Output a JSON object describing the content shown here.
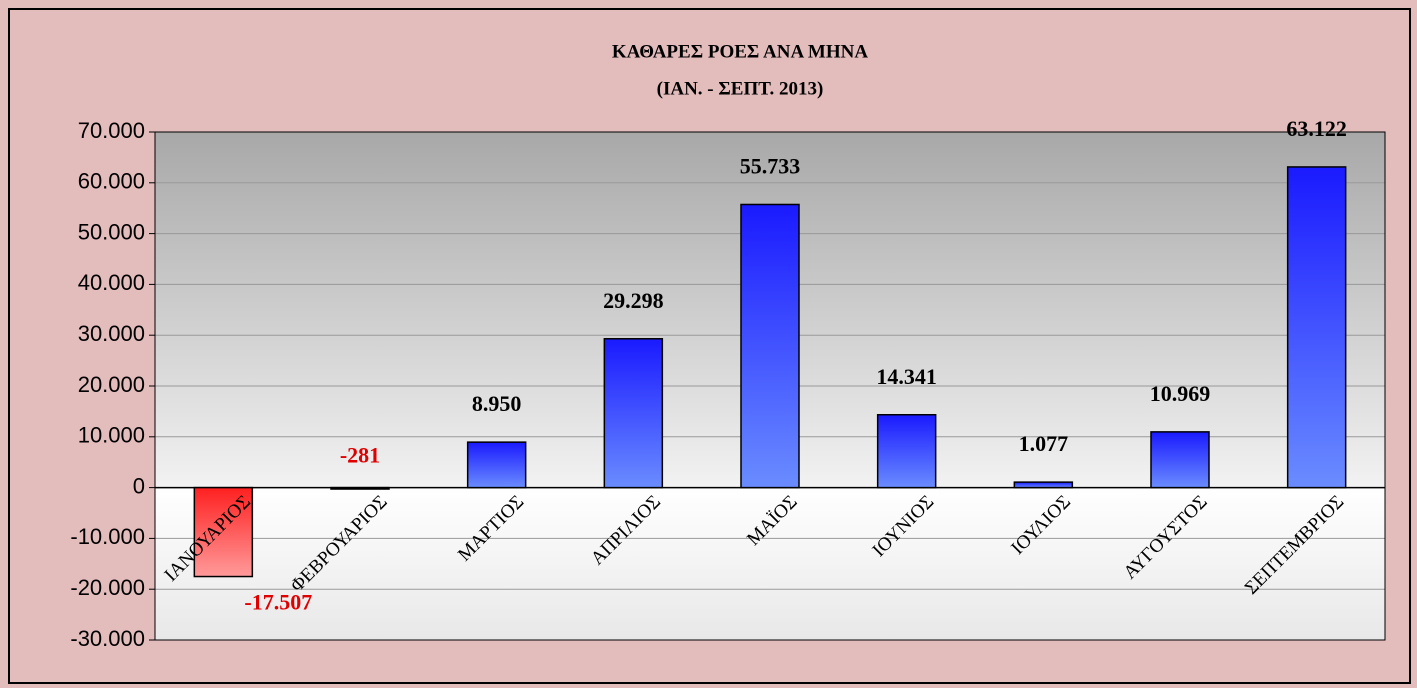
{
  "chart_data": {
    "type": "bar",
    "title": "ΚΑΘΑΡΕΣ ΡΟΕΣ ΑΝΑ ΜΗΝΑ",
    "subtitle": "(ΙΑΝ. - ΣΕΠΤ. 2013)",
    "categories": [
      "ΙΑΝΟΥΑΡΙΟΣ",
      "ΦΕΒΡΟΥΑΡΙΟΣ",
      "ΜΑΡΤΙΟΣ",
      "ΑΠΡΙΛΙΟΣ",
      "ΜΑΪΟΣ",
      "ΙΟΥΝΙΟΣ",
      "ΙΟΥΛΙΟΣ",
      "ΑΥΓΟΥΣΤΟΣ",
      "ΣΕΠΤΕΜΒΡΙΟΣ"
    ],
    "values": [
      -17507,
      -281,
      8950,
      29298,
      55733,
      14341,
      1077,
      10969,
      63122
    ],
    "value_labels": [
      "-17.507",
      "-281",
      "8.950",
      "29.298",
      "55.733",
      "14.341",
      "1.077",
      "10.969",
      "63.122"
    ],
    "color": "#1a1aff",
    "negative_color": "#ff2020",
    "ylim": [
      -30000,
      70000
    ],
    "yticks": [
      {
        "value": -30000,
        "label": "-30.000"
      },
      {
        "value": -20000,
        "label": "-20.000"
      },
      {
        "value": -10000,
        "label": "-10.000"
      },
      0,
      {
        "value": 10000,
        "label": "10.000"
      },
      {
        "value": 20000,
        "label": "20.000"
      },
      {
        "value": 30000,
        "label": "30.000"
      },
      {
        "value": 40000,
        "label": "40.000"
      },
      {
        "value": 50000,
        "label": "50.000"
      },
      {
        "value": 60000,
        "label": "60.000"
      },
      {
        "value": 70000,
        "label": "70.000"
      }
    ],
    "grid": true
  }
}
